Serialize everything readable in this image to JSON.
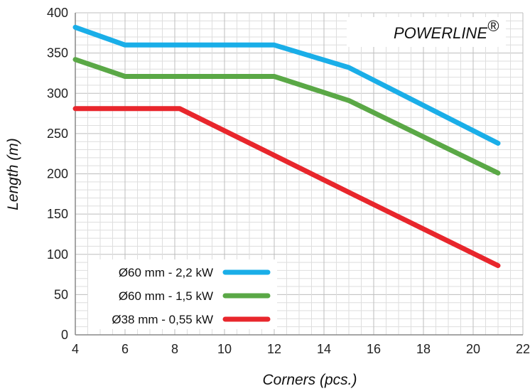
{
  "chart_data": {
    "type": "line",
    "title": "",
    "brand_label": "POWERLINE",
    "brand_mark": "®",
    "xlabel": "Corners (pcs.)",
    "ylabel": "Length (m)",
    "xlim": [
      4,
      22
    ],
    "ylim": [
      0,
      400
    ],
    "x_ticks": [
      4,
      6,
      8,
      10,
      12,
      14,
      16,
      18,
      20,
      22
    ],
    "y_ticks": [
      0,
      50,
      100,
      150,
      200,
      250,
      300,
      350,
      400
    ],
    "grid": true,
    "legend_position": "bottom-left",
    "series": [
      {
        "name": "Ø60 mm - 2,2 kW",
        "color": "#1aaee8",
        "x": [
          4,
          6,
          8,
          10,
          12,
          15,
          21
        ],
        "y": [
          382,
          360,
          360,
          360,
          360,
          332,
          238
        ]
      },
      {
        "name": "Ø60 mm - 1,5 kW",
        "color": "#5aa846",
        "x": [
          4,
          6,
          8,
          10,
          12,
          15,
          21
        ],
        "y": [
          342,
          321,
          321,
          321,
          321,
          291,
          201
        ]
      },
      {
        "name": "Ø38 mm - 0,55 kW",
        "color": "#e8262c",
        "x": [
          4,
          6,
          8.2,
          12,
          15,
          21
        ],
        "y": [
          281,
          281,
          281,
          223,
          177,
          86
        ]
      }
    ]
  }
}
